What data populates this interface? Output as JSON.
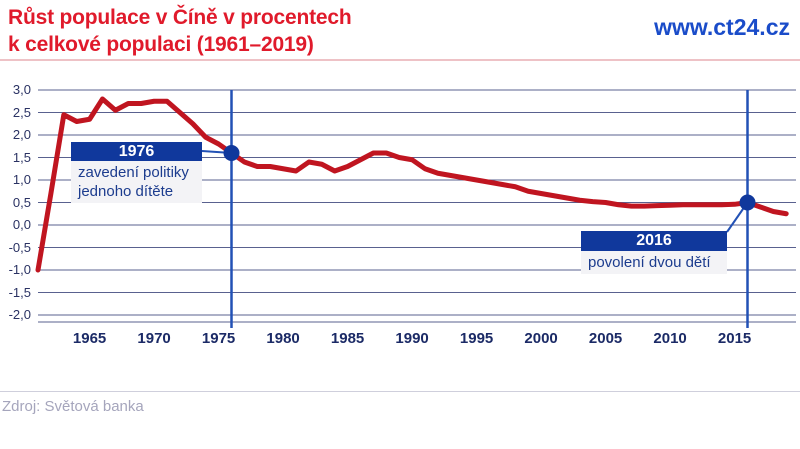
{
  "header": {
    "title_line1": "Růst populace v Číně v procentech",
    "title_line2": "k celkové populaci (1961–2019)",
    "website": "www.ct24.cz"
  },
  "annotations": {
    "one_child": {
      "year_label": "1976",
      "line1": "zavedení politiky",
      "line2": "jednoho dítěte"
    },
    "two_child": {
      "year_label": "2016",
      "line1": "povolení dvou dětí"
    }
  },
  "source": {
    "label": "Zdroj: Světová banka"
  },
  "colors": {
    "title_red": "#e01a2b",
    "line_red": "#c01520",
    "link_blue": "#1a4cc9",
    "marker_navy": "#10389c",
    "vertical_line_blue": "#2251b5",
    "gridline": "#59618f",
    "x_label": "#1b2a66",
    "y_label": "#2a3263",
    "annotation_header_bg": "#10389c",
    "annotation_body_bg": "#f3f3f6",
    "annotation_body_text": "#1c3c8e",
    "source_gray": "#a5a5bc",
    "divider_pink": "#eec2c6",
    "divider_gray": "#cfcfdc"
  },
  "chart_data": {
    "type": "line",
    "title": "Růst populace v Číně v procentech k celkové populaci (1961–2019)",
    "xlabel": "",
    "ylabel": "",
    "grid": "horizontal",
    "ylim": [
      -2.0,
      3.0
    ],
    "yticks": [
      3.0,
      2.5,
      2.0,
      1.5,
      1.0,
      0.5,
      0.0,
      -0.5,
      -1.0,
      -1.5,
      -2.0
    ],
    "ytick_labels": [
      "3,0",
      "2,5",
      "2,0",
      "1,5",
      "1,0",
      "0,5",
      "0,0",
      "-0,5",
      "-1,0",
      "-1,5",
      "-2,0"
    ],
    "xticks": [
      1965,
      1970,
      1975,
      1980,
      1985,
      1990,
      1995,
      2000,
      2005,
      2010,
      2015
    ],
    "x": [
      1961,
      1962,
      1963,
      1964,
      1965,
      1966,
      1967,
      1968,
      1969,
      1970,
      1971,
      1972,
      1973,
      1974,
      1975,
      1976,
      1977,
      1978,
      1979,
      1980,
      1981,
      1982,
      1983,
      1984,
      1985,
      1986,
      1987,
      1988,
      1989,
      1990,
      1991,
      1992,
      1993,
      1994,
      1995,
      1996,
      1997,
      1998,
      1999,
      2000,
      2001,
      2002,
      2003,
      2004,
      2005,
      2006,
      2007,
      2008,
      2009,
      2010,
      2011,
      2012,
      2013,
      2014,
      2015,
      2016,
      2017,
      2018,
      2019
    ],
    "values": [
      -1.0,
      0.7,
      2.45,
      2.3,
      2.35,
      2.8,
      2.55,
      2.7,
      2.7,
      2.75,
      2.75,
      2.5,
      2.25,
      1.95,
      1.8,
      1.6,
      1.4,
      1.3,
      1.3,
      1.25,
      1.2,
      1.4,
      1.35,
      1.2,
      1.3,
      1.45,
      1.6,
      1.6,
      1.5,
      1.45,
      1.25,
      1.15,
      1.1,
      1.05,
      1.0,
      0.95,
      0.9,
      0.85,
      0.75,
      0.7,
      0.65,
      0.6,
      0.55,
      0.52,
      0.5,
      0.45,
      0.42,
      0.42,
      0.43,
      0.44,
      0.45,
      0.45,
      0.45,
      0.45,
      0.46,
      0.5,
      0.4,
      0.3,
      0.25
    ],
    "markers": [
      {
        "year": 1976,
        "value": 1.6,
        "label": "1976",
        "note": "zavedení politiky jednoho dítěte"
      },
      {
        "year": 2016,
        "value": 0.5,
        "label": "2016",
        "note": "povolení dvou dětí"
      }
    ]
  }
}
